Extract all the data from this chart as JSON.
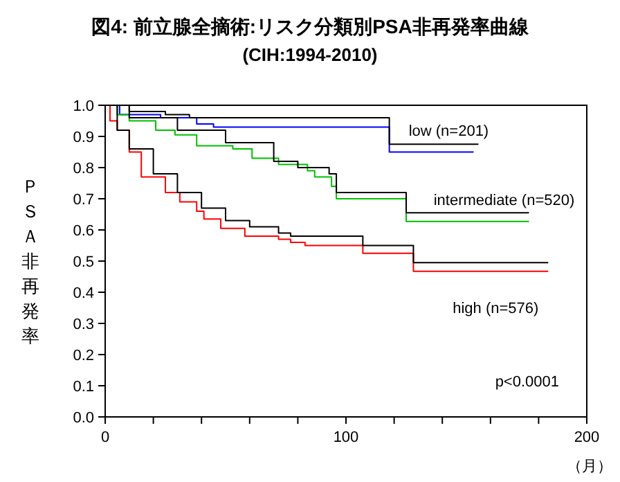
{
  "chart_data": {
    "type": "step",
    "title": "図4: 前立腺全摘術:リスク分類別PSA非再発率曲線",
    "subtitle": "(CIH:1994-2010)",
    "xlabel": "（月）",
    "ylabel": "ＰＳＡ非再発率",
    "xlim": [
      0,
      200
    ],
    "xticks": [
      0,
      {
        "value": 20,
        "label": null
      },
      {
        "value": 40,
        "label": null
      },
      {
        "value": 60,
        "label": null
      },
      {
        "value": 80,
        "label": null
      },
      100,
      {
        "value": 120,
        "label": null
      },
      {
        "value": 140,
        "label": null
      },
      {
        "value": 160,
        "label": null
      },
      {
        "value": 180,
        "label": null
      },
      200
    ],
    "ylim": [
      0,
      1
    ],
    "yticks": [
      {
        "value": 0,
        "label": "0.0"
      },
      0.1,
      0.2,
      0.3,
      0.4,
      0.5,
      0.6,
      0.7,
      0.8,
      0.9,
      {
        "value": 1,
        "label": "1.0"
      }
    ],
    "grid": false,
    "annotations": [
      "p<0.0001"
    ],
    "series": [
      {
        "name": "low (n=201)",
        "color": "#0000ff",
        "x": [
          0,
          6,
          23,
          38,
          45,
          118,
          153
        ],
        "values": [
          1,
          0.97,
          0.96,
          0.94,
          0.93,
          0.85,
          0.85
        ]
      },
      {
        "name": "intermediate (n=520)",
        "color": "#00c000",
        "x": [
          0,
          5,
          10,
          21,
          29,
          38,
          53,
          61,
          72,
          84,
          87,
          94,
          96,
          125,
          176
        ],
        "values": [
          1,
          0.97,
          0.95,
          0.92,
          0.905,
          0.87,
          0.86,
          0.83,
          0.81,
          0.79,
          0.77,
          0.74,
          0.7,
          0.627,
          0.627
        ]
      },
      {
        "name": "high (n=576)",
        "color": "#ff0000",
        "x": [
          0,
          2,
          5,
          10,
          15,
          25,
          31,
          38,
          41,
          48,
          58,
          72,
          77,
          83,
          107,
          128,
          184
        ],
        "values": [
          1,
          0.95,
          0.92,
          0.85,
          0.77,
          0.72,
          0.69,
          0.66,
          0.635,
          0.605,
          0.58,
          0.57,
          0.56,
          0.55,
          0.525,
          0.467,
          0.467
        ]
      },
      {
        "color": "#000000",
        "x": [
          0,
          10,
          25,
          35,
          118,
          155
        ],
        "values": [
          1,
          0.98,
          0.97,
          0.96,
          0.875,
          0.875
        ]
      },
      {
        "color": "#000000",
        "x": [
          0,
          10,
          30,
          50,
          70,
          80,
          93,
          96,
          125,
          176
        ],
        "values": [
          1,
          0.96,
          0.92,
          0.88,
          0.82,
          0.8,
          0.78,
          0.72,
          0.655,
          0.655
        ]
      },
      {
        "color": "#000000",
        "x": [
          0,
          5,
          10,
          20,
          30,
          40,
          50,
          60,
          72,
          77,
          107,
          128,
          184
        ],
        "values": [
          1,
          0.92,
          0.86,
          0.78,
          0.72,
          0.67,
          0.63,
          0.61,
          0.59,
          0.58,
          0.55,
          0.495,
          0.495
        ]
      }
    ]
  }
}
